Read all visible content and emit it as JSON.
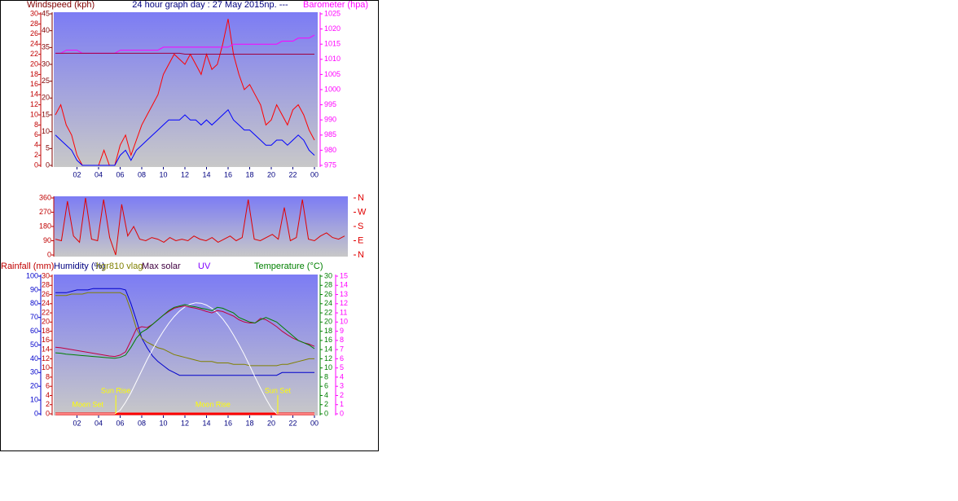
{
  "chart_data": [
    {
      "type": "line",
      "title": "24 hour graph day : 27 May 2015np. ---",
      "ylabel": "Windspeed (kph)",
      "y2label": "Barometer (hpa)",
      "x": [
        0,
        0.5,
        1,
        1.5,
        2,
        2.5,
        3,
        3.5,
        4,
        4.5,
        5,
        5.5,
        6,
        6.5,
        7,
        7.5,
        8,
        8.5,
        9,
        9.5,
        10,
        10.5,
        11,
        11.5,
        12,
        12.5,
        13,
        13.5,
        14,
        14.5,
        15,
        15.5,
        16,
        16.5,
        17,
        17.5,
        18,
        18.5,
        19,
        19.5,
        20,
        20.5,
        21,
        21.5,
        22,
        22.5,
        23,
        23.5,
        24
      ],
      "xlim": [
        0,
        24
      ],
      "xticks": [
        {
          "value": 2,
          "label": "02"
        },
        {
          "value": 4,
          "label": "04"
        },
        {
          "value": 6,
          "label": "06"
        },
        {
          "value": 8,
          "label": "08"
        },
        10,
        12,
        14,
        16,
        18,
        20,
        22,
        {
          "value": 24,
          "label": "00"
        }
      ],
      "ylim": [
        0,
        30
      ],
      "yticks": [
        0,
        2,
        4,
        6,
        8,
        10,
        12,
        14,
        16,
        18,
        20,
        22,
        24,
        26,
        28,
        30
      ],
      "y3lim": [
        0,
        45
      ],
      "y3ticks": [
        0,
        5,
        10,
        15,
        20,
        25,
        30,
        35,
        40,
        45
      ],
      "y2lim": [
        975,
        1025
      ],
      "y2ticks": [
        975,
        980,
        985,
        990,
        995,
        1000,
        1005,
        1010,
        1015,
        1020,
        1025
      ],
      "series": [
        {
          "color": "#ff0000",
          "values": [
            10,
            12,
            8,
            6,
            2,
            0,
            0,
            0,
            0,
            3,
            0,
            0,
            4,
            6,
            2,
            5,
            8,
            10,
            12,
            14,
            18,
            20,
            22,
            21,
            20,
            22,
            20,
            18,
            22,
            19,
            20,
            24,
            29,
            22,
            18,
            15,
            16,
            14,
            12,
            8,
            9,
            12,
            10,
            8,
            11,
            12,
            10,
            7,
            5
          ]
        },
        {
          "color": "#0000ff",
          "values": [
            6,
            5,
            4,
            3,
            1,
            0,
            0,
            0,
            0,
            0,
            0,
            0,
            2,
            3,
            1,
            3,
            4,
            5,
            6,
            7,
            8,
            9,
            9,
            9,
            10,
            9,
            9,
            8,
            9,
            8,
            9,
            10,
            11,
            9,
            8,
            7,
            7,
            6,
            5,
            4,
            4,
            5,
            5,
            4,
            5,
            6,
            5,
            3,
            2
          ]
        },
        {
          "color": "#ff00ff",
          "axis": "y2",
          "values": [
            1012,
            1012,
            1013,
            1013,
            1013,
            1012,
            1012,
            1012,
            1012,
            1012,
            1012,
            1012,
            1013,
            1013,
            1013,
            1013,
            1013,
            1013,
            1013,
            1013,
            1014,
            1014,
            1014,
            1014,
            1014,
            1014,
            1014,
            1014,
            1014,
            1014,
            1014,
            1014,
            1014,
            1015,
            1015,
            1015,
            1015,
            1015,
            1015,
            1015,
            1015,
            1015,
            1016,
            1016,
            1016,
            1017,
            1017,
            1017,
            1018
          ]
        },
        {
          "color": "#a00040",
          "axis": "y2",
          "values": [
            1012,
            1012,
            1012,
            1012,
            1012,
            1012,
            1012,
            1012,
            1012,
            1012,
            1012,
            1012,
            1012,
            1012,
            1012,
            1012,
            1012,
            1012,
            1012,
            1012,
            1012,
            1012,
            1012,
            1012,
            1011.7,
            1011.7,
            1011.7,
            1011.7,
            1011.7,
            1011.7,
            1011.7,
            1011.7,
            1011.7,
            1011.7,
            1011.7,
            1011.7,
            1011.7,
            1011.7,
            1011.7,
            1011.7,
            1011.7,
            1011.7,
            1011.7,
            1011.7,
            1011.7,
            1011.7,
            1011.7,
            1011.7,
            1011.7
          ]
        }
      ]
    },
    {
      "type": "line",
      "x": [
        0,
        0.5,
        1,
        1.5,
        2,
        2.5,
        3,
        3.5,
        4,
        4.5,
        5,
        5.5,
        6,
        6.5,
        7,
        7.5,
        8,
        8.5,
        9,
        9.5,
        10,
        10.5,
        11,
        11.5,
        12,
        12.5,
        13,
        13.5,
        14,
        14.5,
        15,
        15.5,
        16,
        16.5,
        17,
        17.5,
        18,
        18.5,
        19,
        19.5,
        20,
        20.5,
        21,
        21.5,
        22,
        22.5,
        23,
        23.5,
        24
      ],
      "xlim": [
        0,
        24
      ],
      "ylim": [
        0,
        360
      ],
      "yticks": [
        0,
        90,
        180,
        270,
        360
      ],
      "y2lim": [
        0,
        360
      ],
      "y2ticks": [
        {
          "value": 360,
          "label": "N"
        },
        {
          "value": 270,
          "label": "W"
        },
        {
          "value": 180,
          "label": "S"
        },
        {
          "value": 90,
          "label": "E"
        },
        {
          "value": 0,
          "label": "N"
        }
      ],
      "series": [
        {
          "color": "#e00000",
          "values": [
            100,
            90,
            340,
            120,
            80,
            360,
            100,
            90,
            350,
            110,
            0,
            320,
            120,
            180,
            100,
            90,
            110,
            100,
            80,
            110,
            90,
            100,
            90,
            120,
            100,
            90,
            110,
            80,
            100,
            120,
            90,
            110,
            350,
            100,
            90,
            110,
            130,
            100,
            300,
            90,
            110,
            350,
            100,
            90,
            120,
            140,
            110,
            100,
            120
          ]
        }
      ]
    },
    {
      "type": "line",
      "y4label": "UV",
      "x": [
        0,
        0.5,
        1,
        1.5,
        2,
        2.5,
        3,
        3.5,
        4,
        4.5,
        5,
        5.5,
        6,
        6.5,
        7,
        7.5,
        8,
        8.5,
        9,
        9.5,
        10,
        10.5,
        11,
        11.5,
        12,
        12.5,
        13,
        13.5,
        14,
        14.5,
        15,
        15.5,
        16,
        16.5,
        17,
        17.5,
        18,
        18.5,
        19,
        19.5,
        20,
        20.5,
        21,
        21.5,
        22,
        22.5,
        23,
        23.5,
        24
      ],
      "xlim": [
        0,
        24
      ],
      "xticks": [
        {
          "value": 2,
          "label": "02"
        },
        {
          "value": 4,
          "label": "04"
        },
        {
          "value": 6,
          "label": "06"
        },
        {
          "value": 8,
          "label": "08"
        },
        10,
        12,
        14,
        16,
        18,
        20,
        22,
        {
          "value": 24,
          "label": "00"
        }
      ],
      "ylim": [
        0,
        30
      ],
      "yticks": [
        0,
        2,
        4,
        6,
        8,
        10,
        12,
        14,
        16,
        18,
        20,
        22,
        24,
        26,
        28,
        30
      ],
      "y3lim": [
        0,
        100
      ],
      "y3ticks": [
        0,
        10,
        20,
        30,
        40,
        50,
        60,
        70,
        80,
        90,
        100
      ],
      "y2lim": [
        0,
        30
      ],
      "y2ticks": [
        0,
        2,
        4,
        6,
        8,
        10,
        12,
        14,
        16,
        18,
        20,
        22,
        24,
        26,
        28,
        30
      ],
      "y4lim": [
        0,
        15
      ],
      "y4ticks": [
        0,
        1,
        2,
        3,
        4,
        5,
        6,
        7,
        8,
        9,
        10,
        11,
        12,
        13,
        14,
        15
      ],
      "series": [
        {
          "name": "Rainfall (mm)",
          "color": "#ff0000",
          "values": [
            0,
            0,
            0,
            0,
            0,
            0,
            0,
            0,
            0,
            0,
            0,
            0,
            0,
            0,
            0,
            0,
            0,
            0,
            0,
            0,
            0,
            0,
            0,
            0,
            0,
            0,
            0,
            0,
            0,
            0,
            0,
            0,
            0,
            0,
            0,
            0,
            0,
            0,
            0,
            0,
            0,
            0,
            0,
            0,
            0,
            0,
            0,
            0,
            0
          ]
        },
        {
          "name": "Humidity (%)",
          "color": "#0000cc",
          "axis": "y3",
          "values": [
            88,
            88,
            88,
            89,
            90,
            90,
            90,
            91,
            91,
            91,
            91,
            91,
            91,
            90,
            80,
            68,
            55,
            48,
            42,
            38,
            35,
            32,
            30,
            28,
            28,
            28,
            28,
            28,
            28,
            28,
            28,
            28,
            28,
            28,
            28,
            28,
            28,
            28,
            28,
            28,
            28,
            28,
            30,
            30,
            30,
            30,
            30,
            30,
            30
          ]
        },
        {
          "name": "hgr810 vlag",
          "color": "#808000",
          "axis": "y3",
          "values": [
            86,
            86,
            86,
            87,
            87,
            87,
            88,
            88,
            88,
            88,
            88,
            88,
            88,
            86,
            75,
            62,
            55,
            52,
            50,
            48,
            47,
            45,
            43,
            42,
            41,
            40,
            39,
            38,
            38,
            38,
            37,
            37,
            37,
            36,
            36,
            36,
            35,
            35,
            35,
            35,
            35,
            35,
            36,
            36,
            37,
            38,
            39,
            40,
            40
          ]
        },
        {
          "name": "Max solar",
          "color": "#ffffff",
          "axis": "y2",
          "values": [
            0,
            0,
            0,
            0,
            0,
            0,
            0,
            0,
            0,
            0,
            0,
            0,
            0.8,
            2.5,
            4.6,
            7,
            9.4,
            11.8,
            14,
            16.1,
            18,
            19.7,
            21.2,
            22.4,
            23.3,
            23.9,
            24.2,
            24.1,
            23.7,
            23,
            22,
            20.7,
            19.1,
            17.2,
            15.1,
            12.9,
            10.5,
            8,
            5.6,
            3.3,
            1.3,
            0,
            0,
            0,
            0,
            0,
            0,
            0,
            0
          ]
        },
        {
          "color": "#c00040",
          "axis": "y2",
          "values": [
            14.5,
            14.4,
            14.2,
            14.0,
            13.8,
            13.6,
            13.4,
            13.2,
            13.0,
            12.8,
            12.6,
            12.5,
            12.8,
            13.5,
            16.0,
            18.5,
            19.0,
            18.8,
            19.5,
            20.5,
            21.5,
            22.3,
            23.0,
            23.3,
            23.5,
            23.2,
            23.0,
            22.7,
            22.3,
            22.0,
            22.5,
            22.3,
            21.8,
            21.3,
            20.5,
            20.0,
            19.8,
            19.8,
            20.8,
            20.5,
            19.8,
            19.0,
            18.0,
            17.2,
            16.5,
            16.0,
            15.5,
            15.2,
            14.7
          ]
        },
        {
          "name": "Temperature (°C)",
          "color": "#008000",
          "axis": "y2",
          "values": [
            13.3,
            13.2,
            13.0,
            12.9,
            12.8,
            12.7,
            12.6,
            12.5,
            12.4,
            12.3,
            12.2,
            12.1,
            12.3,
            12.8,
            14.5,
            16.5,
            17.8,
            18.5,
            19.5,
            20.5,
            21.5,
            22.5,
            23.2,
            23.5,
            23.8,
            23.5,
            23.3,
            23.0,
            22.8,
            22.5,
            23.2,
            23.0,
            22.5,
            22.0,
            21.0,
            20.5,
            20.0,
            19.8,
            20.5,
            21.0,
            20.5,
            20.0,
            19.0,
            18.0,
            17.0,
            16.0,
            15.5,
            15.0,
            14.2
          ]
        }
      ],
      "annotations": [
        {
          "text": "Moon Set",
          "x": 3
        },
        {
          "text": "Sun Rise",
          "x": 5.6
        },
        {
          "text": "Moon Rise",
          "x": 14.6
        },
        {
          "text": "Sun Set",
          "x": 20.6
        }
      ]
    }
  ]
}
